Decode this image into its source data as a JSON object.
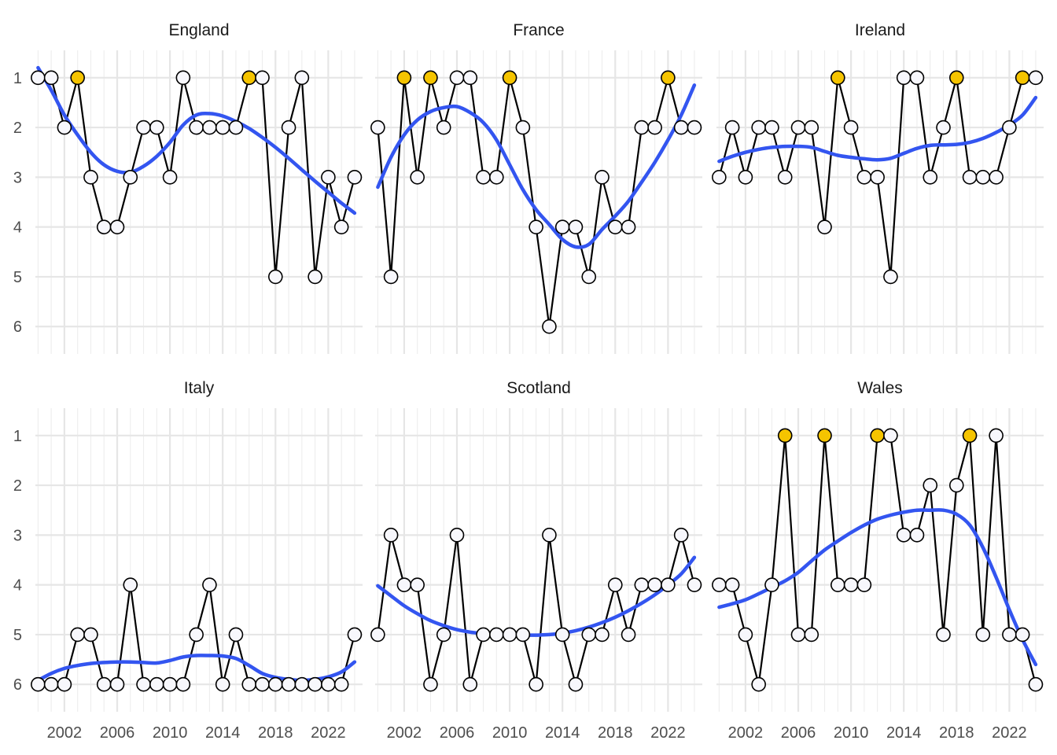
{
  "chart_data": {
    "type": "line",
    "layout": "facet-grid 2x3",
    "x_ticks": [
      2002,
      2006,
      2010,
      2014,
      2018,
      2022
    ],
    "xlim": [
      1999.8,
      2024.6
    ],
    "y_ticks": [
      1,
      2,
      3,
      4,
      5,
      6
    ],
    "ylim": [
      6.55,
      0.45
    ],
    "y_reversed": true,
    "x": [
      2000,
      2001,
      2002,
      2003,
      2004,
      2005,
      2006,
      2007,
      2008,
      2009,
      2010,
      2011,
      2012,
      2013,
      2014,
      2015,
      2016,
      2017,
      2018,
      2019,
      2020,
      2021,
      2022,
      2023,
      2024
    ],
    "colors": {
      "winner": "#f5c400",
      "other": "#f7f7fc",
      "trend": "#3355f0",
      "line": "#000000"
    },
    "panels": [
      {
        "name": "England",
        "values": [
          1,
          1,
          2,
          1,
          3,
          4,
          4,
          3,
          2,
          2,
          3,
          1,
          2,
          2,
          2,
          2,
          1,
          1,
          5,
          2,
          1,
          5,
          3,
          4,
          3
        ],
        "winners": [
          2003,
          2016
        ],
        "trend": [
          0.8,
          1.25,
          1.75,
          2.15,
          2.5,
          2.75,
          2.88,
          2.9,
          2.78,
          2.58,
          2.3,
          1.95,
          1.75,
          1.72,
          1.77,
          1.88,
          2.02,
          2.2,
          2.4,
          2.62,
          2.85,
          3.08,
          3.3,
          3.52,
          3.72
        ]
      },
      {
        "name": "France",
        "values": [
          2,
          5,
          1,
          3,
          1,
          2,
          1,
          1,
          3,
          3,
          1,
          2,
          4,
          6,
          4,
          4,
          5,
          3,
          4,
          4,
          2,
          2,
          1,
          2,
          2
        ],
        "winners": [
          2002,
          2004,
          2010,
          2022
        ],
        "trend": [
          3.2,
          2.6,
          2.15,
          1.85,
          1.68,
          1.6,
          1.58,
          1.7,
          1.9,
          2.25,
          2.75,
          3.25,
          3.65,
          3.95,
          4.25,
          4.4,
          4.35,
          4.05,
          3.78,
          3.48,
          3.1,
          2.7,
          2.25,
          1.75,
          1.15
        ]
      },
      {
        "name": "Ireland",
        "values": [
          3,
          2,
          3,
          2,
          2,
          3,
          2,
          2,
          4,
          1,
          2,
          3,
          3,
          5,
          1,
          1,
          3,
          2,
          1,
          3,
          3,
          3,
          2,
          1,
          1
        ],
        "winners": [
          2009,
          2018,
          2023
        ],
        "trend": [
          2.68,
          2.58,
          2.5,
          2.44,
          2.4,
          2.38,
          2.38,
          2.4,
          2.48,
          2.56,
          2.6,
          2.63,
          2.65,
          2.62,
          2.52,
          2.42,
          2.36,
          2.35,
          2.34,
          2.3,
          2.22,
          2.1,
          1.95,
          1.75,
          1.4
        ]
      },
      {
        "name": "Italy",
        "values": [
          6,
          6,
          6,
          5,
          5,
          6,
          6,
          4,
          6,
          6,
          6,
          6,
          5,
          4,
          6,
          5,
          6,
          6,
          6,
          6,
          6,
          6,
          6,
          6,
          5
        ],
        "winners": [],
        "trend": [
          5.92,
          5.78,
          5.68,
          5.62,
          5.58,
          5.56,
          5.55,
          5.55,
          5.56,
          5.57,
          5.52,
          5.45,
          5.42,
          5.42,
          5.43,
          5.48,
          5.62,
          5.78,
          5.86,
          5.9,
          5.92,
          5.9,
          5.85,
          5.75,
          5.55
        ]
      },
      {
        "name": "Scotland",
        "values": [
          5,
          3,
          4,
          4,
          6,
          5,
          3,
          6,
          5,
          5,
          5,
          5,
          6,
          3,
          5,
          6,
          5,
          5,
          4,
          5,
          4,
          4,
          4,
          3,
          4
        ],
        "winners": [],
        "trend": [
          4.02,
          4.22,
          4.42,
          4.58,
          4.72,
          4.82,
          4.9,
          4.95,
          4.98,
          5.0,
          5.01,
          5.01,
          5.01,
          5.0,
          4.97,
          4.92,
          4.85,
          4.76,
          4.65,
          4.52,
          4.37,
          4.2,
          4.0,
          3.78,
          3.45
        ]
      },
      {
        "name": "Wales",
        "values": [
          4,
          4,
          5,
          6,
          4,
          1,
          5,
          5,
          1,
          4,
          4,
          4,
          1,
          1,
          3,
          3,
          2,
          5,
          2,
          1,
          5,
          1,
          5,
          5,
          6
        ],
        "winners": [
          2005,
          2008,
          2012,
          2019
        ],
        "trend": [
          4.45,
          4.38,
          4.3,
          4.18,
          4.05,
          3.92,
          3.75,
          3.52,
          3.3,
          3.12,
          2.95,
          2.8,
          2.68,
          2.6,
          2.54,
          2.5,
          2.5,
          2.5,
          2.58,
          2.8,
          3.25,
          3.85,
          4.5,
          5.1,
          5.6
        ]
      }
    ]
  }
}
